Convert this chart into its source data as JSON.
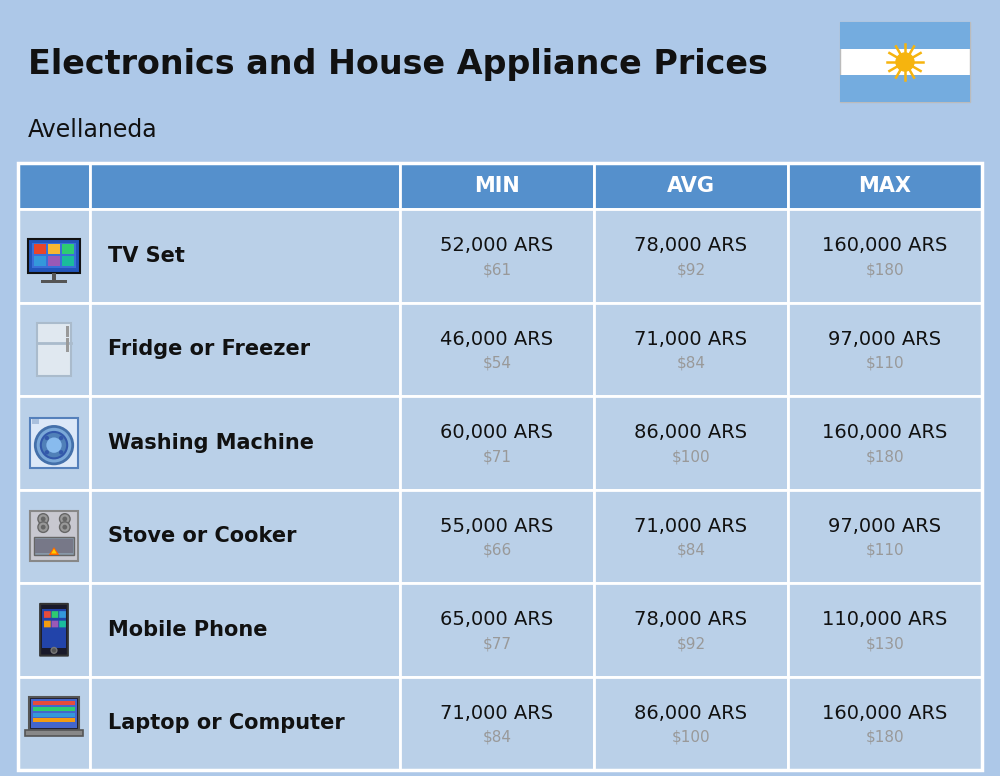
{
  "title": "Electronics and House Appliance Prices",
  "subtitle": "Avellaneda",
  "background_color": "#adc8e8",
  "header_color": "#5590cc",
  "header_text_color": "#ffffff",
  "row_color": "#bad0e8",
  "divider_color": "#ffffff",
  "items": [
    {
      "name": "TV Set",
      "min_ars": "52,000 ARS",
      "min_usd": "$61",
      "avg_ars": "78,000 ARS",
      "avg_usd": "$92",
      "max_ars": "160,000 ARS",
      "max_usd": "$180"
    },
    {
      "name": "Fridge or Freezer",
      "min_ars": "46,000 ARS",
      "min_usd": "$54",
      "avg_ars": "71,000 ARS",
      "avg_usd": "$84",
      "max_ars": "97,000 ARS",
      "max_usd": "$110"
    },
    {
      "name": "Washing Machine",
      "min_ars": "60,000 ARS",
      "min_usd": "$71",
      "avg_ars": "86,000 ARS",
      "avg_usd": "$100",
      "max_ars": "160,000 ARS",
      "max_usd": "$180"
    },
    {
      "name": "Stove or Cooker",
      "min_ars": "55,000 ARS",
      "min_usd": "$66",
      "avg_ars": "71,000 ARS",
      "avg_usd": "$84",
      "max_ars": "97,000 ARS",
      "max_usd": "$110"
    },
    {
      "name": "Mobile Phone",
      "min_ars": "65,000 ARS",
      "min_usd": "$77",
      "avg_ars": "78,000 ARS",
      "avg_usd": "$92",
      "max_ars": "110,000 ARS",
      "max_usd": "$130"
    },
    {
      "name": "Laptop or Computer",
      "min_ars": "71,000 ARS",
      "min_usd": "$84",
      "avg_ars": "86,000 ARS",
      "avg_usd": "$100",
      "max_ars": "160,000 ARS",
      "max_usd": "$180"
    }
  ],
  "col_headers": [
    "MIN",
    "AVG",
    "MAX"
  ],
  "main_text_color": "#111111",
  "usd_text_color": "#999999",
  "name_fontsize": 15,
  "header_fontsize": 15,
  "value_fontsize": 14,
  "usd_fontsize": 11,
  "title_fontsize": 24,
  "subtitle_fontsize": 17,
  "flag_stripe_color": "#74acdf",
  "flag_sun_color": "#F6B40E"
}
